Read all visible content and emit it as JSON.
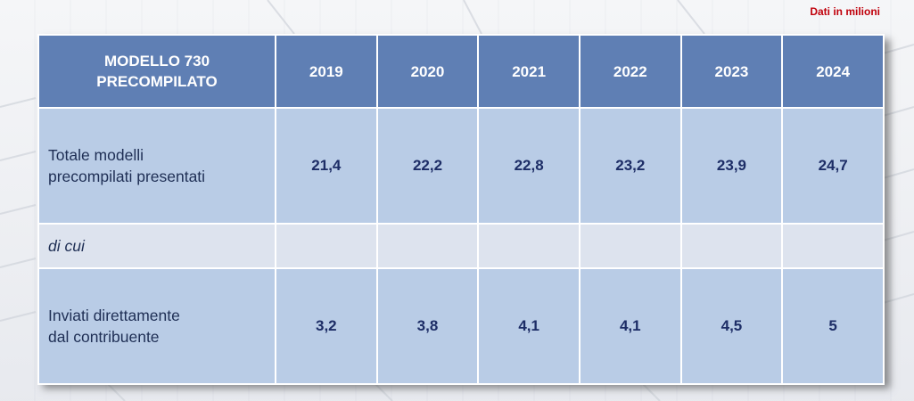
{
  "note": "Dati in milioni",
  "table": {
    "header_label_line1": "MODELLO 730",
    "header_label_line2": "PRECOMPILATO",
    "years": [
      "2019",
      "2020",
      "2021",
      "2022",
      "2023",
      "2024"
    ],
    "rows": {
      "totale": {
        "label_line1": "Totale modelli",
        "label_line2": "precompilati presentati",
        "values": [
          "21,4",
          "22,2",
          "22,8",
          "23,2",
          "23,9",
          "24,7"
        ]
      },
      "di_cui": {
        "label": "di cui"
      },
      "inviati": {
        "label_line1": "Inviati direttamente",
        "label_line2": "dal contribuente",
        "values": [
          "3,2",
          "3,8",
          "4,1",
          "4,1",
          "4,5",
          "5"
        ]
      }
    }
  },
  "chart_data": {
    "type": "table",
    "title": "MODELLO 730 PRECOMPILATO",
    "unit_note": "Dati in milioni",
    "columns": [
      "2019",
      "2020",
      "2021",
      "2022",
      "2023",
      "2024"
    ],
    "rows": [
      {
        "label": "Totale modelli precompilati presentati",
        "values": [
          21.4,
          22.2,
          22.8,
          23.2,
          23.9,
          24.7
        ]
      },
      {
        "label": "di cui",
        "values": []
      },
      {
        "label": "Inviati direttamente dal contribuente",
        "values": [
          3.2,
          3.8,
          4.1,
          4.1,
          4.5,
          5
        ]
      }
    ]
  }
}
